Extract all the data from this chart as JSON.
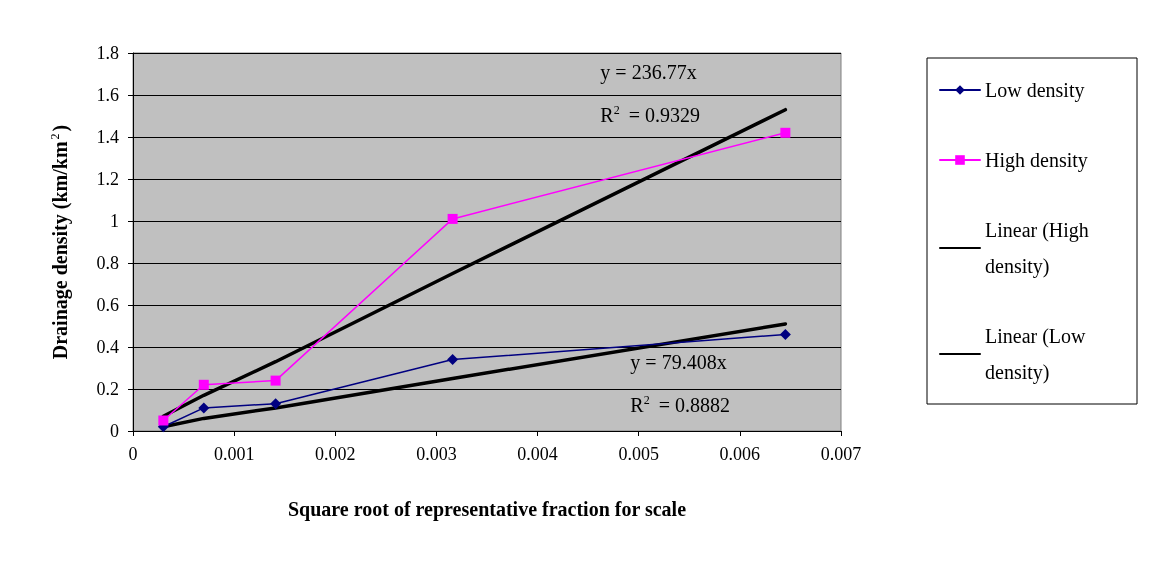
{
  "chart_data": {
    "type": "line",
    "xlabel": "Square root of representative fraction for scale",
    "ylabel": "Drainage density (km/km$^{2}$)",
    "x": [
      0.0003,
      0.0007,
      0.00141,
      0.00316,
      0.00645
    ],
    "series": [
      {
        "name": "Low density",
        "color": "#000080",
        "marker": "diamond",
        "values": [
          0.02,
          0.11,
          0.13,
          0.34,
          0.46
        ]
      },
      {
        "name": "High density",
        "color": "#ff00ff",
        "marker": "square",
        "values": [
          0.05,
          0.22,
          0.24,
          1.01,
          1.42
        ]
      },
      {
        "name": "Linear (High density)",
        "color": "#000000",
        "marker": "none",
        "values": [
          0.07,
          0.17,
          0.33,
          0.75,
          1.53
        ]
      },
      {
        "name": "Linear (Low density)",
        "color": "#000000",
        "marker": "none",
        "values": [
          0.02,
          0.06,
          0.11,
          0.25,
          0.51
        ]
      }
    ],
    "annotations": [
      "y = 236.77x",
      "R$^{2}$ = 0.9329",
      "y = 79.408x",
      "R$^{2}$ = 0.8882"
    ],
    "xlim": [
      0,
      0.007
    ],
    "xticks": [
      0,
      0.001,
      0.002,
      0.003,
      0.004,
      0.005,
      0.006,
      0.007
    ],
    "ylim": [
      0,
      1.8
    ],
    "yticks": [
      0,
      0.2,
      0.4,
      0.6,
      0.8,
      1,
      1.2,
      1.4,
      1.6,
      1.8
    ],
    "grid": "y",
    "legend": "right"
  }
}
